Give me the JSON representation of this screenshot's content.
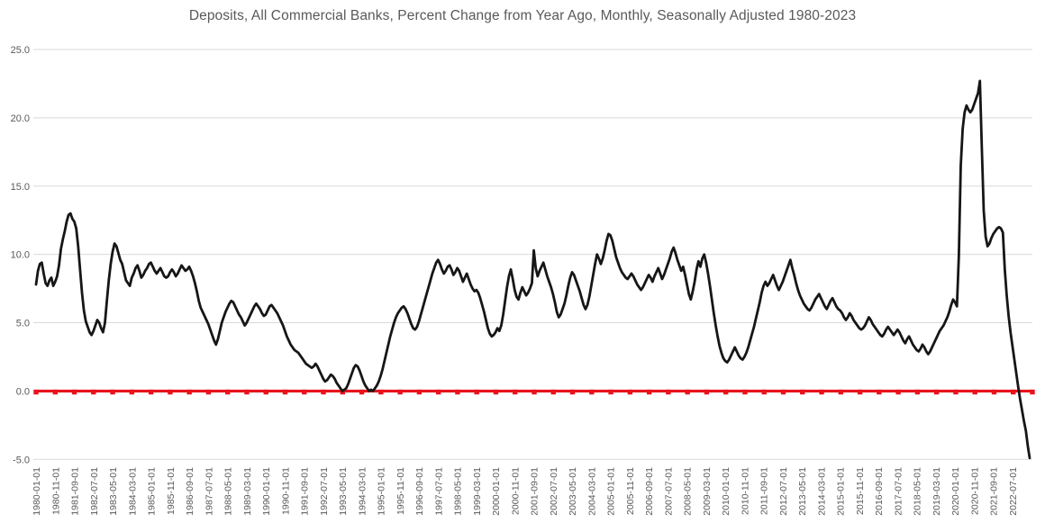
{
  "chart_data": {
    "type": "line",
    "title": "Deposits, All Commercial Banks, Percent Change from Year Ago, Monthly, Seasonally Adjusted 1980-2023",
    "xlabel": "",
    "ylabel": "",
    "frequency": "monthly",
    "x_start": "1980-01-01",
    "x_end": "2023-04-01",
    "ylim": [
      -5.0,
      25.0
    ],
    "grid": "horizontal",
    "legend": "none",
    "y_tick_labels": [
      "25.0",
      "20.0",
      "15.0",
      "10.0",
      "5.0",
      "0.0",
      "-5.0"
    ],
    "x_tick_labels": [
      "1980-01-01",
      "1980-11-01",
      "1981-09-01",
      "1982-07-01",
      "1983-05-01",
      "1984-03-01",
      "1985-01-01",
      "1985-11-01",
      "1986-09-01",
      "1987-07-01",
      "1988-05-01",
      "1989-03-01",
      "1990-01-01",
      "1990-11-01",
      "1991-09-01",
      "1992-07-01",
      "1993-05-01",
      "1994-03-01",
      "1995-01-01",
      "1995-11-01",
      "1996-09-01",
      "1997-07-01",
      "1998-05-01",
      "1999-03-01",
      "2000-01-01",
      "2000-11-01",
      "2001-09-01",
      "2002-07-01",
      "2003-05-01",
      "2004-03-01",
      "2005-01-01",
      "2005-11-01",
      "2006-09-01",
      "2007-07-01",
      "2008-05-01",
      "2009-03-01",
      "2010-01-01",
      "2010-11-01",
      "2011-09-01",
      "2012-07-01",
      "2013-05-01",
      "2014-03-01",
      "2015-01-01",
      "2015-11-01",
      "2016-09-01",
      "2017-07-01",
      "2018-05-01",
      "2019-03-01",
      "2020-01-01",
      "2020-11-01",
      "2021-09-01",
      "2022-07-01"
    ],
    "series": [
      {
        "name": "Deposits, All Commercial Banks, percent change from year ago",
        "color": "#161616",
        "line_width": 2.8,
        "values": [
          7.8,
          8.8,
          9.3,
          9.4,
          8.6,
          7.9,
          7.7,
          8.1,
          8.3,
          7.7,
          8.0,
          8.4,
          9.2,
          10.4,
          11.1,
          11.7,
          12.4,
          12.9,
          13.0,
          12.6,
          12.4,
          11.9,
          10.6,
          8.9,
          7.2,
          5.9,
          5.1,
          4.7,
          4.3,
          4.1,
          4.4,
          4.8,
          5.2,
          5.0,
          4.6,
          4.3,
          5.0,
          6.6,
          8.1,
          9.3,
          10.2,
          10.8,
          10.6,
          10.1,
          9.6,
          9.3,
          8.7,
          8.1,
          7.9,
          7.7,
          8.3,
          8.6,
          9.0,
          9.2,
          8.8,
          8.3,
          8.5,
          8.8,
          9.0,
          9.3,
          9.4,
          9.1,
          8.8,
          8.6,
          8.8,
          9.0,
          8.7,
          8.4,
          8.3,
          8.4,
          8.7,
          8.9,
          8.7,
          8.4,
          8.6,
          8.9,
          9.2,
          9.0,
          8.8,
          8.9,
          9.1,
          8.8,
          8.4,
          7.9,
          7.3,
          6.6,
          6.1,
          5.8,
          5.5,
          5.2,
          4.9,
          4.5,
          4.1,
          3.7,
          3.4,
          3.8,
          4.4,
          5.0,
          5.4,
          5.8,
          6.1,
          6.4,
          6.6,
          6.5,
          6.2,
          5.9,
          5.6,
          5.4,
          5.1,
          4.8,
          5.0,
          5.3,
          5.6,
          5.9,
          6.2,
          6.4,
          6.2,
          6.0,
          5.7,
          5.5,
          5.6,
          5.9,
          6.2,
          6.3,
          6.1,
          5.9,
          5.7,
          5.4,
          5.1,
          4.8,
          4.4,
          4.0,
          3.7,
          3.4,
          3.2,
          3.0,
          2.9,
          2.8,
          2.6,
          2.4,
          2.2,
          2.0,
          1.9,
          1.8,
          1.7,
          1.8,
          2.0,
          1.8,
          1.5,
          1.2,
          0.9,
          0.7,
          0.8,
          1.0,
          1.2,
          1.1,
          0.9,
          0.6,
          0.4,
          0.2,
          0.0,
          0.1,
          0.2,
          0.5,
          0.9,
          1.3,
          1.7,
          1.9,
          1.8,
          1.5,
          1.1,
          0.7,
          0.4,
          0.2,
          0.0,
          0.1,
          0.0,
          0.2,
          0.4,
          0.7,
          1.1,
          1.6,
          2.2,
          2.8,
          3.4,
          4.0,
          4.5,
          5.0,
          5.4,
          5.7,
          5.9,
          6.1,
          6.2,
          6.0,
          5.7,
          5.3,
          4.9,
          4.6,
          4.5,
          4.7,
          5.1,
          5.6,
          6.1,
          6.6,
          7.1,
          7.6,
          8.1,
          8.6,
          9.0,
          9.4,
          9.6,
          9.3,
          8.9,
          8.6,
          8.8,
          9.1,
          9.2,
          8.9,
          8.5,
          8.7,
          9.0,
          8.8,
          8.4,
          8.0,
          8.3,
          8.6,
          8.2,
          7.8,
          7.5,
          7.3,
          7.4,
          7.2,
          6.8,
          6.3,
          5.8,
          5.2,
          4.6,
          4.2,
          4.0,
          4.1,
          4.3,
          4.6,
          4.4,
          4.8,
          5.6,
          6.6,
          7.6,
          8.4,
          8.9,
          8.2,
          7.4,
          6.9,
          6.7,
          7.2,
          7.6,
          7.3,
          7.0,
          7.2,
          7.5,
          7.9,
          10.3,
          9.0,
          8.4,
          8.8,
          9.1,
          9.4,
          8.9,
          8.4,
          8.0,
          7.6,
          7.1,
          6.5,
          5.8,
          5.4,
          5.6,
          6.0,
          6.4,
          7.0,
          7.7,
          8.3,
          8.7,
          8.5,
          8.1,
          7.7,
          7.3,
          6.8,
          6.3,
          6.0,
          6.3,
          6.9,
          7.7,
          8.5,
          9.3,
          10.0,
          9.7,
          9.3,
          9.7,
          10.3,
          11.0,
          11.5,
          11.4,
          11.0,
          10.4,
          9.8,
          9.4,
          9.0,
          8.7,
          8.5,
          8.3,
          8.2,
          8.4,
          8.6,
          8.4,
          8.1,
          7.8,
          7.6,
          7.4,
          7.6,
          7.9,
          8.2,
          8.5,
          8.3,
          8.0,
          8.4,
          8.7,
          9.0,
          8.6,
          8.2,
          8.5,
          8.9,
          9.3,
          9.7,
          10.2,
          10.5,
          10.1,
          9.6,
          9.2,
          8.8,
          9.1,
          8.5,
          7.8,
          7.1,
          6.7,
          7.3,
          8.0,
          8.9,
          9.5,
          9.1,
          9.7,
          10.0,
          9.4,
          8.6,
          7.7,
          6.7,
          5.7,
          4.8,
          4.0,
          3.3,
          2.8,
          2.4,
          2.2,
          2.1,
          2.3,
          2.6,
          2.9,
          3.2,
          2.9,
          2.6,
          2.4,
          2.3,
          2.5,
          2.8,
          3.2,
          3.7,
          4.2,
          4.7,
          5.3,
          5.9,
          6.5,
          7.2,
          7.7,
          8.0,
          7.7,
          7.9,
          8.2,
          8.5,
          8.1,
          7.7,
          7.4,
          7.7,
          8.0,
          8.4,
          8.8,
          9.2,
          9.6,
          9.0,
          8.5,
          7.9,
          7.4,
          7.0,
          6.7,
          6.4,
          6.2,
          6.0,
          5.9,
          6.1,
          6.4,
          6.7,
          6.9,
          7.1,
          6.8,
          6.5,
          6.2,
          6.0,
          6.3,
          6.6,
          6.8,
          6.5,
          6.2,
          6.0,
          5.9,
          5.7,
          5.4,
          5.2,
          5.4,
          5.7,
          5.5,
          5.2,
          5.0,
          4.8,
          4.6,
          4.5,
          4.6,
          4.8,
          5.1,
          5.4,
          5.2,
          4.9,
          4.7,
          4.5,
          4.3,
          4.1,
          4.0,
          4.2,
          4.5,
          4.7,
          4.5,
          4.3,
          4.1,
          4.3,
          4.5,
          4.3,
          4.0,
          3.7,
          3.5,
          3.8,
          4.0,
          3.7,
          3.4,
          3.2,
          3.0,
          2.9,
          3.1,
          3.4,
          3.2,
          2.9,
          2.7,
          2.9,
          3.2,
          3.5,
          3.8,
          4.1,
          4.4,
          4.6,
          4.8,
          5.1,
          5.4,
          5.8,
          6.3,
          6.7,
          6.5,
          6.2,
          9.9,
          16.5,
          19.2,
          20.4,
          20.9,
          20.6,
          20.4,
          20.6,
          21.0,
          21.4,
          21.8,
          22.7,
          17.8,
          13.2,
          11.3,
          10.6,
          10.8,
          11.2,
          11.5,
          11.7,
          11.9,
          12.0,
          11.9,
          11.6,
          8.9,
          7.0,
          5.5,
          4.3,
          3.3,
          2.3,
          1.3,
          0.3,
          -0.6,
          -1.4,
          -2.2,
          -2.9,
          -4.0,
          -4.9
        ]
      },
      {
        "name": "Zero reference line",
        "color": "#e8131d",
        "line_width": 3.2,
        "constant_value": 0.0,
        "marker": "square"
      }
    ]
  }
}
